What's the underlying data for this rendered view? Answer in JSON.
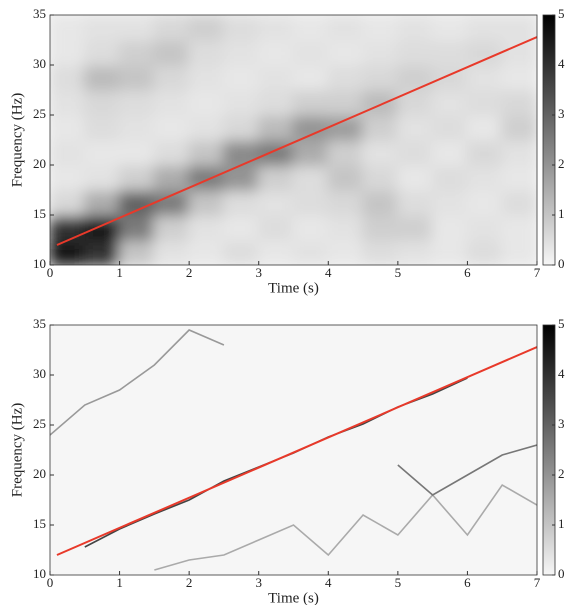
{
  "chart_data": [
    {
      "type": "heatmap",
      "xlabel": "Time (s)",
      "ylabel": "Frequency (Hz)",
      "xlim": [
        0,
        7
      ],
      "ylim": [
        10,
        35
      ],
      "xticks": [
        0,
        1,
        2,
        3,
        4,
        5,
        6,
        7
      ],
      "yticks": [
        10,
        15,
        20,
        25,
        30,
        35
      ],
      "zlim": [
        0,
        5
      ],
      "zticks": [
        0,
        1,
        2,
        3,
        4,
        5
      ],
      "x": [
        0.25,
        0.75,
        1.25,
        1.75,
        2.25,
        2.75,
        3.25,
        3.75,
        4.25,
        4.75,
        5.25,
        5.75,
        6.25,
        6.75
      ],
      "y": [
        11.25,
        13.75,
        16.25,
        18.75,
        21.25,
        23.75,
        26.25,
        28.75,
        31.25,
        33.75
      ],
      "z": [
        [
          4.5,
          4,
          1,
          0.4,
          0.3,
          0.5,
          0.3,
          0.4,
          0.3,
          0.5,
          0.4,
          0.3,
          0.5,
          0.3
        ],
        [
          4,
          4.5,
          2.5,
          0.8,
          0.4,
          0.3,
          0.5,
          0.3,
          0.4,
          0.8,
          0.8,
          0.3,
          0.4,
          0.3
        ],
        [
          0.6,
          1.5,
          3,
          2.5,
          1,
          0.5,
          0.4,
          0.5,
          0.6,
          1,
          0.5,
          0.4,
          0.3,
          0.5
        ],
        [
          0.3,
          0.4,
          0.8,
          1.5,
          2.5,
          2,
          0.8,
          0.5,
          1,
          0.6,
          0.3,
          0.5,
          0.4,
          0.3
        ],
        [
          0.4,
          0.3,
          0.3,
          0.5,
          1,
          2.2,
          2.5,
          1.5,
          0.8,
          0.4,
          0.5,
          0.3,
          0.6,
          0.4
        ],
        [
          0.3,
          0.5,
          0.4,
          0.3,
          0.4,
          0.6,
          1.2,
          2,
          1.8,
          0.8,
          0.4,
          0.5,
          0.3,
          0.8
        ],
        [
          0.4,
          0.6,
          0.5,
          0.4,
          0.3,
          0.4,
          0.5,
          0.8,
          0.8,
          1.2,
          0.6,
          0.4,
          0.5,
          0.6
        ],
        [
          0.5,
          1.2,
          1,
          0.6,
          0.4,
          0.3,
          0.4,
          0.3,
          0.5,
          0.6,
          0.8,
          0.6,
          0.4,
          0.3
        ],
        [
          0.3,
          0.5,
          0.8,
          1,
          0.5,
          0.4,
          0.3,
          0.4,
          0.3,
          0.4,
          0.5,
          0.5,
          0.6,
          0.4
        ],
        [
          0.3,
          0.4,
          0.4,
          0.6,
          0.8,
          0.5,
          0.4,
          0.3,
          0.4,
          0.3,
          0.4,
          0.3,
          0.4,
          0.4
        ]
      ],
      "fit": {
        "x": [
          0.1,
          7
        ],
        "y": [
          12,
          32.8
        ],
        "color": "#e8392a"
      }
    },
    {
      "type": "line",
      "xlabel": "Time (s)",
      "ylabel": "Frequency (Hz)",
      "xlim": [
        0,
        7
      ],
      "ylim": [
        10,
        35
      ],
      "xticks": [
        0,
        1,
        2,
        3,
        4,
        5,
        6,
        7
      ],
      "yticks": [
        10,
        15,
        20,
        25,
        30,
        35
      ],
      "zlim": [
        0,
        5
      ],
      "zticks": [
        0,
        1,
        2,
        3,
        4,
        5
      ],
      "x": [
        0,
        0.5,
        1,
        1.5,
        2,
        2.5,
        3,
        3.5,
        4,
        4.5,
        5,
        5.5,
        6,
        6.5,
        7
      ],
      "series": [
        {
          "color": "#444",
          "values": [
            null,
            12.8,
            14.6,
            16.1,
            17.5,
            19.4,
            20.8,
            22.2,
            23.8,
            25.1,
            26.8,
            28.1,
            29.7,
            null,
            null
          ]
        },
        {
          "color": "#999",
          "values": [
            24,
            27,
            28.5,
            31,
            34.5,
            33,
            null,
            null,
            null,
            null,
            null,
            null,
            null,
            null,
            null
          ]
        },
        {
          "color": "#aaa",
          "values": [
            null,
            null,
            null,
            10.5,
            11.5,
            12,
            13.5,
            15,
            12,
            16,
            14,
            18,
            14,
            19,
            17
          ]
        },
        {
          "color": "#777",
          "values": [
            null,
            null,
            null,
            null,
            null,
            null,
            null,
            null,
            null,
            null,
            21,
            18,
            20,
            22,
            23
          ]
        }
      ],
      "fit": {
        "x": [
          0.1,
          7
        ],
        "y": [
          12,
          32.8
        ],
        "color": "#e8392a"
      }
    }
  ]
}
